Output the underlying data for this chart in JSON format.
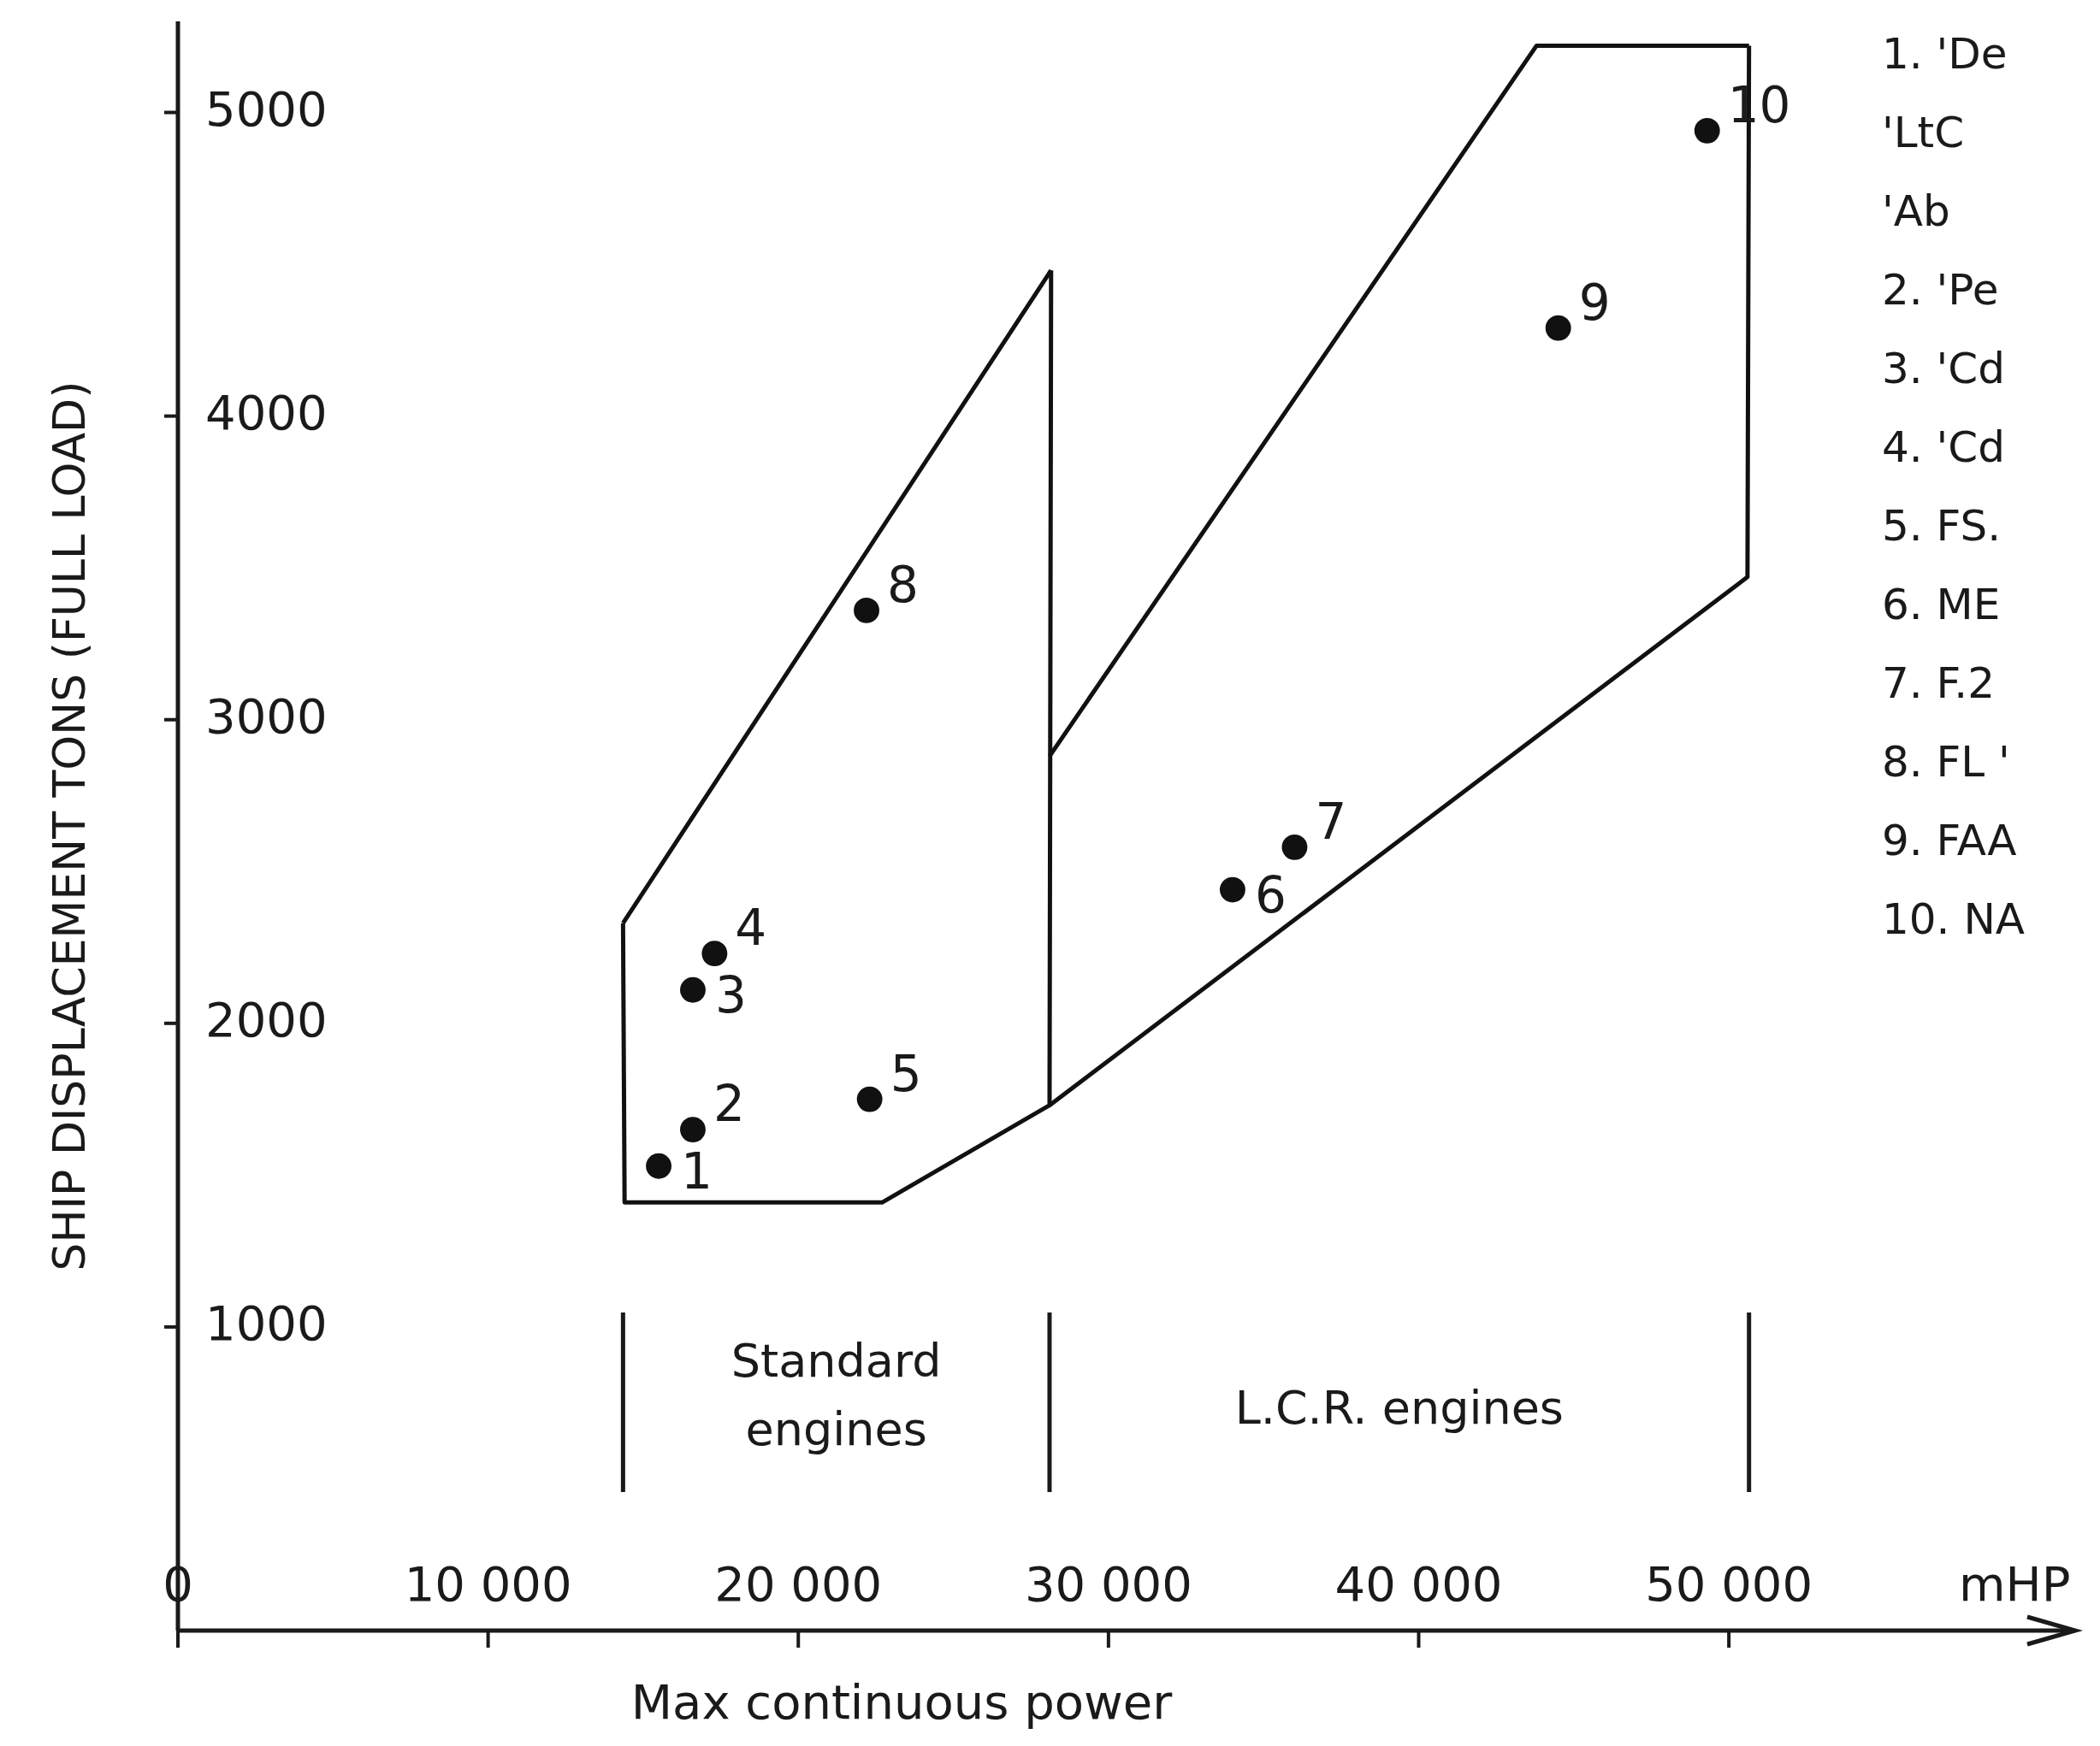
{
  "chart_data": {
    "type": "scatter",
    "xlabel": "Max continuous power",
    "ylabel": "SHIP DISPLACEMENT TONS (FULL LOAD)",
    "xlim": [
      0,
      61000
    ],
    "ylim": [
      0,
      5300
    ],
    "xticks": [
      0,
      {
        "value": 10000,
        "label": "10 000"
      },
      {
        "value": 20000,
        "label": "20 000"
      },
      {
        "value": 30000,
        "label": "30 000"
      },
      {
        "value": 40000,
        "label": "40 000"
      },
      {
        "value": 50000,
        "label": "50 000"
      }
    ],
    "yticks": [
      1000,
      2000,
      3000,
      4000,
      5000
    ],
    "series": [
      {
        "marker": "circle",
        "color": "#111111",
        "x": [
          15500,
          16600,
          16600,
          17300,
          22300,
          34000,
          36000,
          22200,
          44500,
          49300
        ],
        "values": [
          1530,
          1650,
          2110,
          2230,
          1750,
          2440,
          2580,
          3360,
          4290,
          4940
        ]
      },
      {
        "type": "line",
        "marker": "none",
        "color": "#111111",
        "line_style": "solid",
        "x": [
          14350,
          14400,
          22700,
          28100,
          28150
        ],
        "values": [
          2330,
          1410,
          1410,
          1730,
          4480
        ]
      },
      {
        "type": "line",
        "marker": "none",
        "color": "#111111",
        "line_style": "solid",
        "x": [
          14350,
          28150
        ],
        "values": [
          2330,
          4480
        ]
      },
      {
        "type": "line",
        "marker": "none",
        "color": "#111111",
        "line_style": "solid",
        "x": [
          28100,
          50600,
          50650
        ],
        "values": [
          1730,
          3470,
          5220
        ]
      },
      {
        "type": "line",
        "marker": "none",
        "color": "#111111",
        "line_style": "solid",
        "x": [
          28100,
          43800,
          50650
        ],
        "values": [
          2880,
          5220,
          5220
        ]
      }
    ],
    "annotations": [
      {
        "text": "1",
        "x": 15500,
        "y": 1530
      },
      {
        "text": "2",
        "x": 16600,
        "y": 1650
      },
      {
        "text": "3",
        "x": 16600,
        "y": 2110
      },
      {
        "text": "4",
        "x": 17300,
        "y": 2230
      },
      {
        "text": "5",
        "x": 22300,
        "y": 1750
      },
      {
        "text": "6",
        "x": 34000,
        "y": 2440
      },
      {
        "text": "7",
        "x": 36000,
        "y": 2580
      },
      {
        "text": "8",
        "x": 22200,
        "y": 3360
      },
      {
        "text": "9",
        "x": 44500,
        "y": 4290
      },
      {
        "text": "10",
        "x": 49300,
        "y": 4940
      },
      "Standard engines",
      "L.C.R. engines",
      "mHP",
      "1. 'De",
      "'LtC",
      "'Ab",
      "2. 'Pe",
      "3. 'Cd",
      "4. 'Cd",
      "5. FS.",
      "6. ME",
      "7. F.2",
      "8. FL '",
      "9. FAA",
      "10. NA"
    ]
  }
}
